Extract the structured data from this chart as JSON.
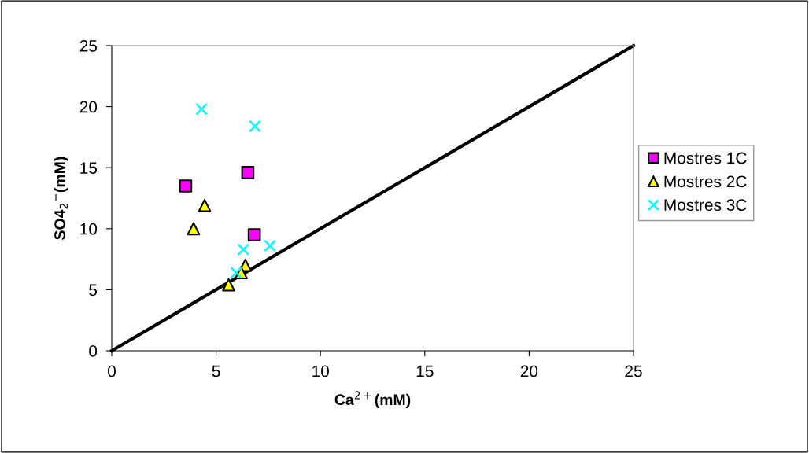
{
  "chart_data": {
    "type": "scatter",
    "xlabel": "Ca$^{2+}$(mM)",
    "ylabel": "SO4$_{2}$$^{−}$(mM)",
    "xlim": [
      0,
      25
    ],
    "ylim": [
      0,
      25
    ],
    "xticks": [
      0,
      5,
      10,
      15,
      20,
      25
    ],
    "yticks": [
      0,
      5,
      10,
      15,
      20,
      25
    ],
    "grid": false,
    "legend": "right",
    "series": [
      {
        "name": "Mostres 1C",
        "color": "#ff00ff",
        "marker": "square",
        "x": [
          3.54,
          6.52,
          6.83
        ],
        "values": [
          13.5,
          14.6,
          9.5
        ]
      },
      {
        "name": "Mostres 2C",
        "color": "#ffff00",
        "marker": "triangle",
        "x": [
          4.45,
          3.92,
          6.4,
          6.3,
          6.2,
          5.6
        ],
        "values": [
          11.9,
          10.0,
          7.0,
          null,
          6.4,
          5.4
        ]
      },
      {
        "name": "Mostres 3C",
        "color": "#00ffff",
        "marker": "cross",
        "x": [
          4.3,
          6.86,
          6.3,
          7.58,
          5.96
        ],
        "values": [
          19.8,
          18.4,
          8.3,
          8.6,
          6.4
        ]
      },
      {
        "type": "line",
        "color": "#000000",
        "marker": "none",
        "line_style": "solid",
        "x": [
          0,
          25
        ],
        "values": [
          0,
          25
        ]
      }
    ]
  }
}
